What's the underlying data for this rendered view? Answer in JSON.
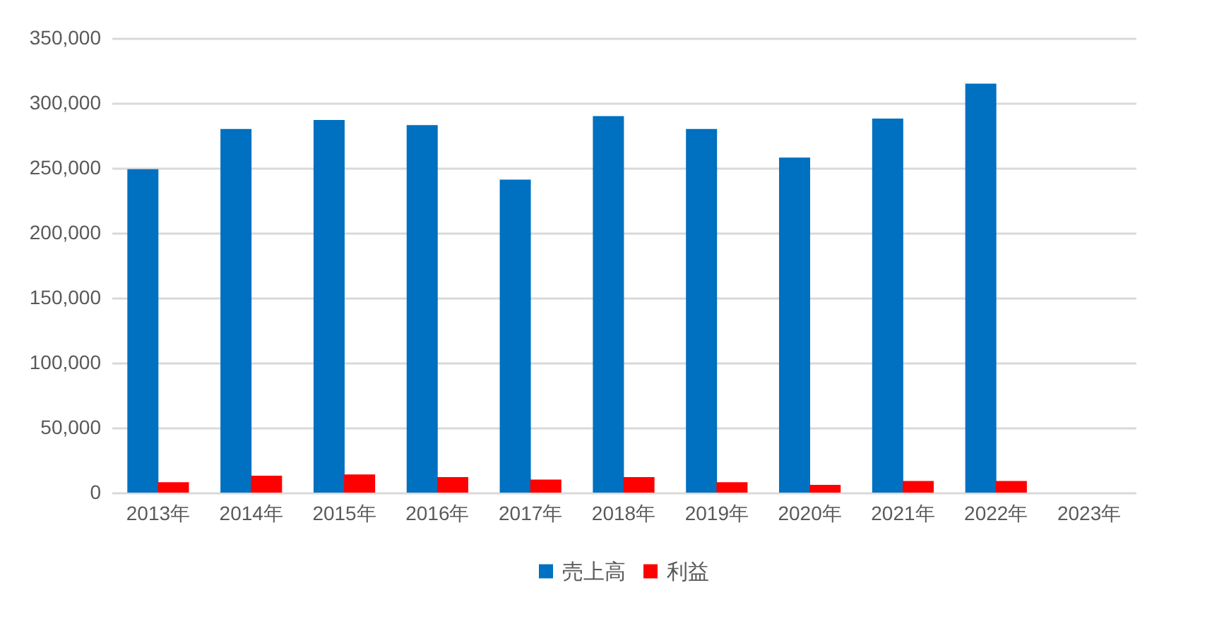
{
  "chart_data": {
    "type": "bar",
    "categories": [
      "2013年",
      "2014年",
      "2015年",
      "2016年",
      "2017年",
      "2018年",
      "2019年",
      "2020年",
      "2021年",
      "2022年",
      "2023年"
    ],
    "series": [
      {
        "name": "売上高",
        "color": "#0070c0",
        "values": [
          249000,
          280000,
          287000,
          283000,
          241000,
          290000,
          280000,
          258000,
          288000,
          315000,
          null
        ]
      },
      {
        "name": "利益",
        "color": "#ff0000",
        "values": [
          8000,
          13000,
          14000,
          12000,
          10000,
          12000,
          8000,
          6000,
          9000,
          9000,
          null
        ]
      }
    ],
    "ylim": [
      0,
      350000
    ],
    "yticks": [
      0,
      {
        "value": 50000,
        "label": "50,000"
      },
      {
        "value": 100000,
        "label": "100,000"
      },
      {
        "value": 150000,
        "label": "150,000"
      },
      {
        "value": 200000,
        "label": "200,000"
      },
      {
        "value": 250000,
        "label": "250,000"
      },
      {
        "value": 300000,
        "label": "300,000"
      },
      {
        "value": 350000,
        "label": "350,000"
      }
    ],
    "grid": "y",
    "legend": "bottom"
  }
}
